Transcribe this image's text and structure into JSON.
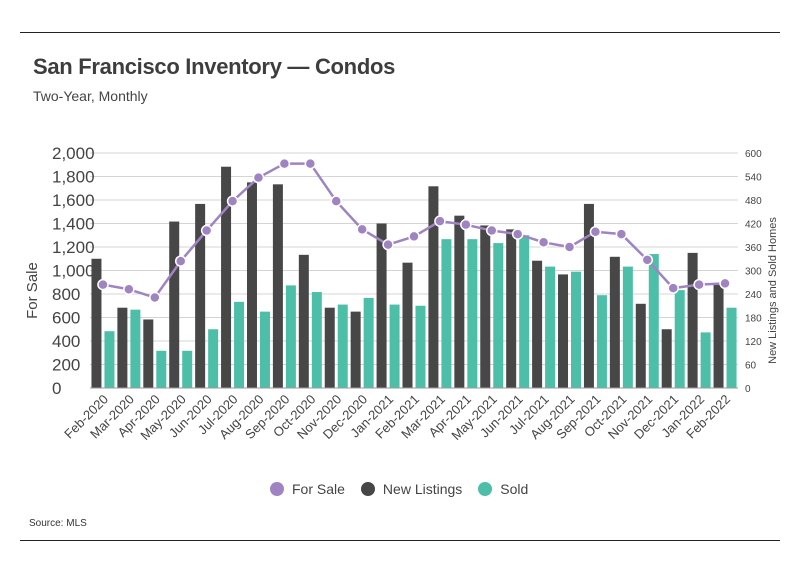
{
  "title": "San Francisco Inventory — Condos",
  "subtitle": "Two-Year, Monthly",
  "source": "Source:  MLS",
  "colors": {
    "for_sale": "#a084c2",
    "new_listings": "#474747",
    "sold": "#4dbfa8",
    "grid": "#d4d4d4",
    "text": "#444444"
  },
  "chart_data": {
    "type": "bar",
    "categories": [
      "Feb-2020",
      "Mar-2020",
      "Apr-2020",
      "May-2020",
      "Jun-2020",
      "Jul-2020",
      "Aug-2020",
      "Sep-2020",
      "Oct-2020",
      "Nov-2020",
      "Dec-2020",
      "Jan-2021",
      "Feb-2021",
      "Mar-2021",
      "Apr-2021",
      "May-2021",
      "Jun-2021",
      "Jul-2021",
      "Aug-2021",
      "Sep-2021",
      "Oct-2021",
      "Nov-2021",
      "Dec-2021",
      "Jan-2022",
      "Feb-2022"
    ],
    "series": [
      {
        "name": "For Sale",
        "type": "line",
        "axis": "left",
        "values": [
          880,
          840,
          770,
          1080,
          1340,
          1590,
          1790,
          1910,
          1910,
          1590,
          1350,
          1220,
          1290,
          1420,
          1390,
          1340,
          1310,
          1240,
          1200,
          1330,
          1310,
          1090,
          850,
          880,
          890
        ]
      },
      {
        "name": "New Listings",
        "type": "bar",
        "axis": "right",
        "values": [
          330,
          205,
          175,
          425,
          470,
          565,
          525,
          520,
          340,
          205,
          195,
          420,
          320,
          515,
          440,
          415,
          405,
          325,
          290,
          470,
          335,
          215,
          150,
          345,
          265
        ]
      },
      {
        "name": "Sold",
        "type": "bar",
        "axis": "right",
        "values": [
          145,
          200,
          95,
          95,
          150,
          220,
          195,
          262,
          245,
          213,
          230,
          213,
          210,
          380,
          380,
          370,
          390,
          310,
          297,
          237,
          310,
          342,
          250,
          142,
          205
        ]
      }
    ],
    "ylabel": "For Sale",
    "y2label": "New Listings and Sold Homes",
    "ylim": [
      0,
      2000
    ],
    "y2lim": [
      0,
      600
    ],
    "yticks": [
      "0",
      "200",
      "400",
      "600",
      "800",
      "1,000",
      "1,200",
      "1,400",
      "1,600",
      "1,800",
      "2,000"
    ],
    "y2ticks": [
      "0",
      "60",
      "120",
      "180",
      "240",
      "300",
      "360",
      "420",
      "480",
      "540",
      "600"
    ],
    "legend": [
      "For Sale",
      "New Listings",
      "Sold"
    ],
    "legend_position": "bottom",
    "grid": true
  }
}
